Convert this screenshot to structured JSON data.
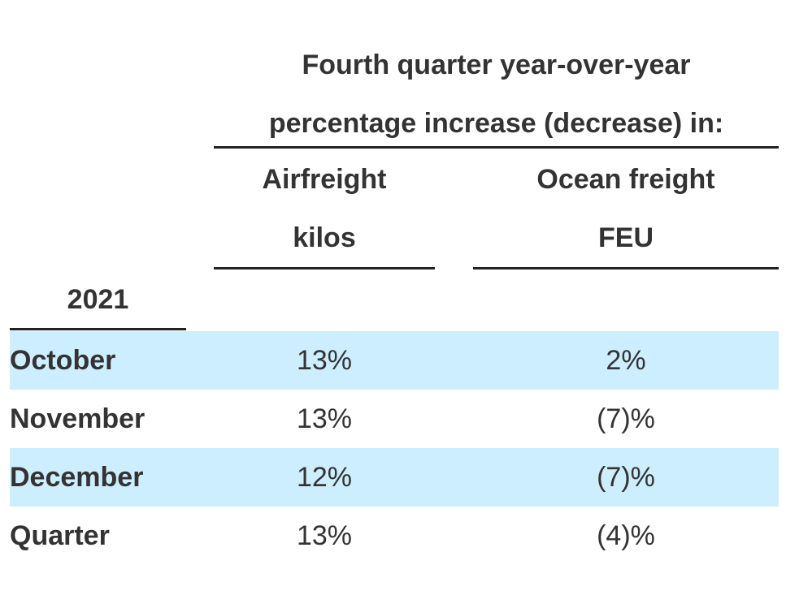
{
  "table": {
    "super_header_line1": "Fourth quarter year-over-year",
    "super_header_line2": "percentage increase (decrease) in:",
    "columns": [
      {
        "line1": "Airfreight",
        "line2": "kilos"
      },
      {
        "line1": "Ocean freight",
        "line2": "FEU"
      }
    ],
    "year_header": "2021",
    "rows": [
      {
        "label": "October",
        "airfreight": "13%",
        "ocean": "2%"
      },
      {
        "label": "November",
        "airfreight": "13%",
        "ocean": "(7)%"
      },
      {
        "label": "December",
        "airfreight": "12%",
        "ocean": "(7)%"
      },
      {
        "label": "Quarter",
        "airfreight": "13%",
        "ocean": "(4)%"
      }
    ]
  },
  "colors": {
    "row_shade": "#cceeff",
    "text": "#333333",
    "rule": "#222222"
  }
}
